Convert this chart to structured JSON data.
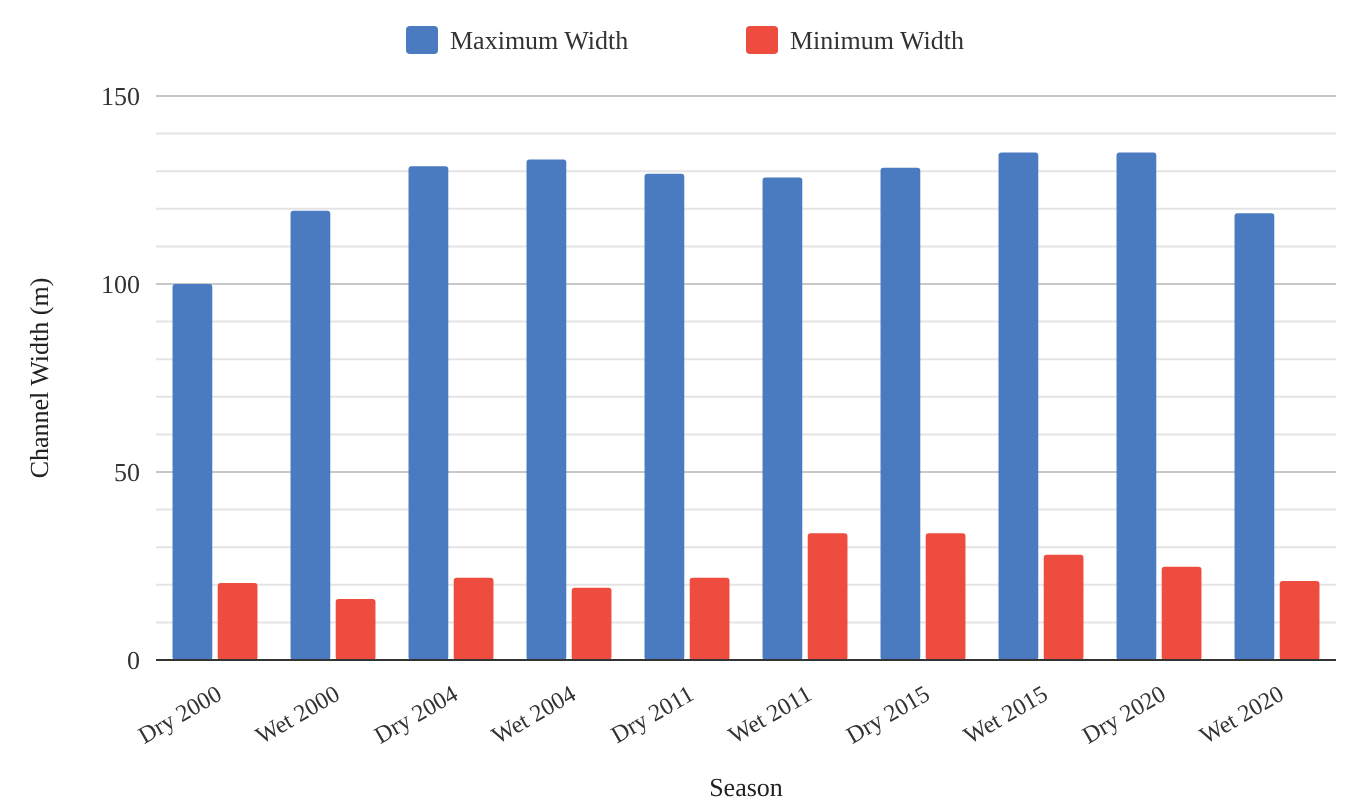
{
  "chart_data": {
    "type": "bar",
    "xlabel": "Season",
    "ylabel": "Channel Width (m)",
    "categories": [
      "Dry 2000",
      "Wet 2000",
      "Dry 2004",
      "Wet 2004",
      "Dry 2011",
      "Wet 2011",
      "Dry 2015",
      "Wet 2015",
      "Dry 2020",
      "Wet 2020"
    ],
    "series": [
      {
        "name": "Maximum Width",
        "color": "#4a7abf",
        "values": [
          100,
          119.5,
          131.3,
          133.1,
          129.3,
          128.3,
          130.9,
          135,
          135,
          118.8
        ]
      },
      {
        "name": "Minimum Width",
        "color": "#ee4c3e",
        "values": [
          20.5,
          16.2,
          21.9,
          19.2,
          21.9,
          33.7,
          33.7,
          28,
          24.8,
          21
        ]
      }
    ],
    "ylim": [
      0,
      150
    ],
    "yticks": [
      0,
      {
        "value": 10,
        "label": null
      },
      {
        "value": 20,
        "label": null
      },
      {
        "value": 30,
        "label": null
      },
      {
        "value": 40,
        "label": null
      },
      50,
      {
        "value": 60,
        "label": null
      },
      {
        "value": 70,
        "label": null
      },
      {
        "value": 80,
        "label": null
      },
      {
        "value": 90,
        "label": null
      },
      100,
      {
        "value": 110,
        "label": null
      },
      {
        "value": 120,
        "label": null
      },
      {
        "value": 130,
        "label": null
      },
      {
        "value": 140,
        "label": null
      },
      150
    ],
    "grid": true,
    "legend": "top"
  }
}
